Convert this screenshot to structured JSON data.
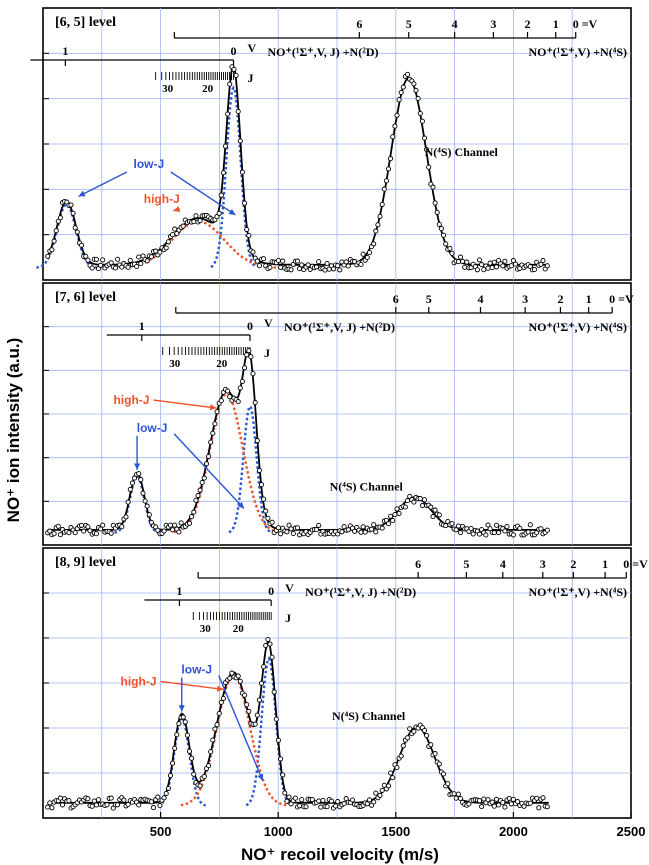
{
  "figure": {
    "ylabel": "NO⁺ ion intensity (a.u.)",
    "xlabel": "NO⁺ recoil velocity (m/s)",
    "x_ticks": [
      "500",
      "1000",
      "1500",
      "2000",
      "2500"
    ],
    "colors": {
      "fit": "#000000",
      "data_marker": "#000000",
      "low_j": "#2a55d6",
      "high_j": "#f0522a",
      "grid": "#9fb6f0"
    }
  },
  "chart_data": [
    {
      "type": "line",
      "panel_label": "[6, 5] level",
      "xlim": [
        0,
        2500
      ],
      "v_scale_top": {
        "labels": [
          "6",
          "5",
          "4",
          "3",
          "2",
          "1",
          "0"
        ],
        "x": [
          1345,
          1555,
          1750,
          1915,
          2060,
          2180,
          2265
        ],
        "suffix": "=V"
      },
      "v_scale_low": {
        "labels": [
          "1",
          "0"
        ],
        "x": [
          95,
          810
        ],
        "suffix": "V"
      },
      "j_scale": {
        "labels": [
          "30",
          "20"
        ],
        "x": [
          530,
          700
        ],
        "suffix": "J"
      },
      "channel_d": "NO⁺(¹Σ⁺,V, J) +N(²D)",
      "channel_s": "NO⁺(¹Σ⁺,V) +N(⁴S)",
      "peak_label": "N(⁴S) Channel",
      "annotations": [
        "low-J",
        "high-J"
      ],
      "series": [
        {
          "name": "low-J",
          "x": [
            100,
            810
          ],
          "amp": [
            0.3,
            0.85
          ],
          "width": [
            40,
            30
          ]
        },
        {
          "name": "high-J",
          "x": [
            660
          ],
          "amp": [
            0.22
          ],
          "width": [
            110
          ]
        },
        {
          "name": "N(⁴S)",
          "x": [
            1555
          ],
          "amp": [
            0.88
          ],
          "width": [
            75
          ]
        }
      ]
    },
    {
      "type": "line",
      "panel_label": "[7, 6] level",
      "xlim": [
        0,
        2500
      ],
      "v_scale_top": {
        "labels": [
          "6",
          "5",
          "4",
          "3",
          "2",
          "1",
          "0"
        ],
        "x": [
          1500,
          1640,
          1860,
          2050,
          2200,
          2320,
          2420
        ],
        "suffix": "=V"
      },
      "v_scale_low": {
        "labels": [
          "1",
          "0"
        ],
        "x": [
          420,
          880
        ],
        "suffix": "V"
      },
      "j_scale": {
        "labels": [
          "30",
          "20"
        ],
        "x": [
          560,
          760
        ],
        "suffix": "J"
      },
      "channel_d": "NO⁺(¹Σ⁺,V, J) +N(²D)",
      "channel_s": "NO⁺(¹Σ⁺,V) +N(⁴S)",
      "peak_label": "N(⁴S) Channel",
      "annotations": [
        "high-J",
        "low-J"
      ],
      "series": [
        {
          "name": "low-J",
          "x": [
            400,
            880
          ],
          "amp": [
            0.28,
            0.62
          ],
          "width": [
            30,
            28
          ]
        },
        {
          "name": "high-J",
          "x": [
            780
          ],
          "amp": [
            0.68
          ],
          "width": [
            70
          ]
        },
        {
          "name": "N(⁴S)",
          "x": [
            1580
          ],
          "amp": [
            0.16
          ],
          "width": [
            70
          ]
        }
      ]
    },
    {
      "type": "line",
      "panel_label": "[8, 9] level",
      "xlim": [
        0,
        2500
      ],
      "v_scale_top": {
        "labels": [
          "6",
          "5",
          "4",
          "3",
          "2",
          "1",
          "0"
        ],
        "x": [
          1595,
          1800,
          1955,
          2125,
          2255,
          2390,
          2480
        ],
        "suffix": "=V"
      },
      "v_scale_low": {
        "labels": [
          "1",
          "0"
        ],
        "x": [
          580,
          970
        ],
        "suffix": "V"
      },
      "j_scale": {
        "labels": [
          "30",
          "20"
        ],
        "x": [
          690,
          830
        ],
        "suffix": "J"
      },
      "channel_d": "NO⁺(¹Σ⁺,V, J) +N(²D)",
      "channel_s": "NO⁺(¹Σ⁺,V) +N(⁴S)",
      "peak_label": "N(⁴S) Channel",
      "annotations": [
        "high-J",
        "low-J"
      ],
      "series": [
        {
          "name": "low-J",
          "x": [
            590,
            960
          ],
          "amp": [
            0.42,
            0.7
          ],
          "width": [
            32,
            30
          ]
        },
        {
          "name": "high-J",
          "x": [
            810
          ],
          "amp": [
            0.62
          ],
          "width": [
            70
          ]
        },
        {
          "name": "N(⁴S)",
          "x": [
            1590
          ],
          "amp": [
            0.36
          ],
          "width": [
            75
          ]
        }
      ]
    }
  ]
}
